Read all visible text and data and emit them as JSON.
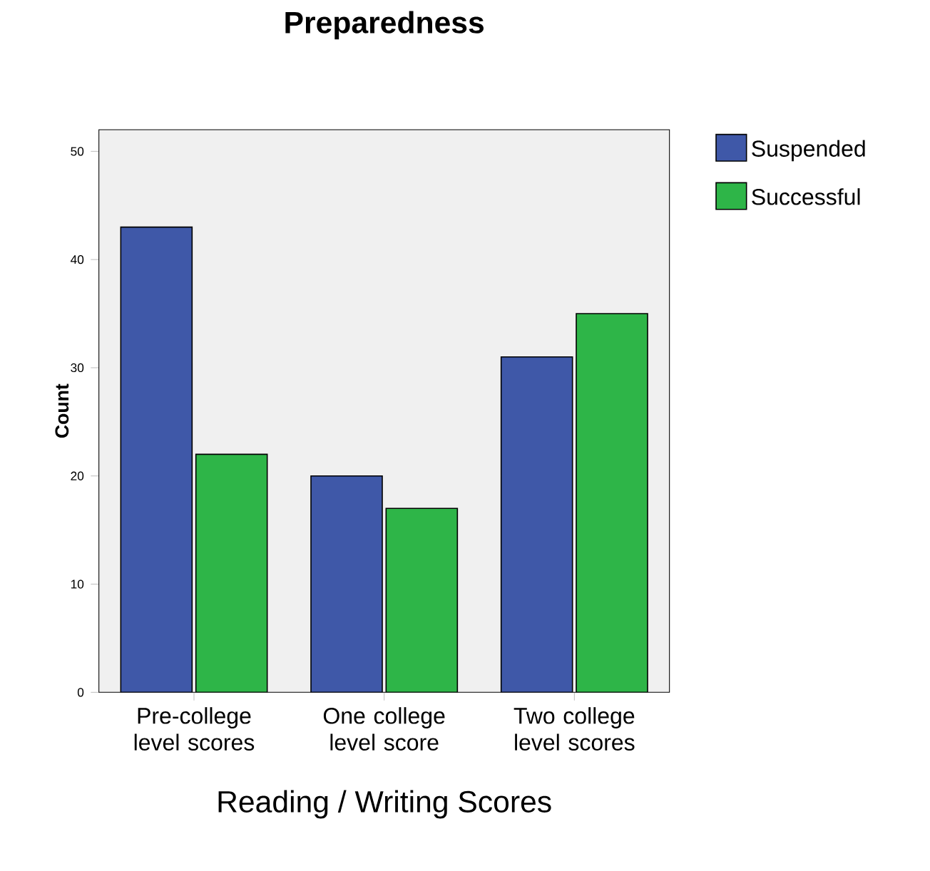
{
  "chart_data": {
    "type": "bar",
    "title": "Preparedness",
    "xlabel": "Reading / Writing Scores",
    "ylabel": "Count",
    "categories": [
      "Pre-college level scores",
      "One college level score",
      "Two college level scores"
    ],
    "series": [
      {
        "name": "Suspended",
        "color": "#3f58a8",
        "values": [
          43,
          20,
          31
        ]
      },
      {
        "name": "Successful",
        "color": "#2eb548",
        "values": [
          22,
          17,
          35
        ]
      }
    ],
    "ylim": [
      0,
      52
    ],
    "yticks": [
      0,
      10,
      20,
      30,
      40,
      50
    ],
    "grid": false,
    "legend": "right"
  }
}
